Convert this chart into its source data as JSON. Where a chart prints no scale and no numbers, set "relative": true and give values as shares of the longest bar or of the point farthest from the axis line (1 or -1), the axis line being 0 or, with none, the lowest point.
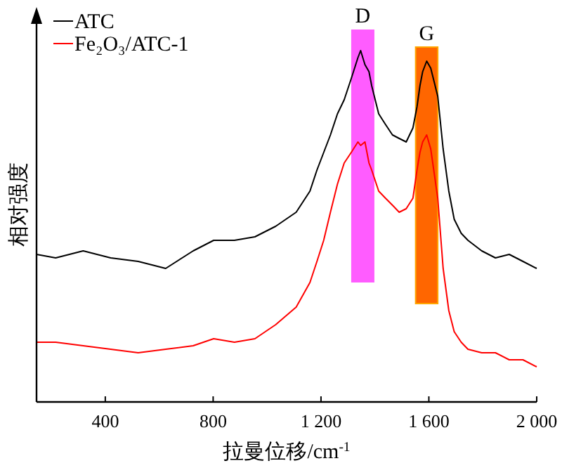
{
  "chart_data": {
    "type": "line",
    "relative": true,
    "xlabel": "拉曼位移/cm$^{-1}$",
    "ylabel": "相对强度",
    "xlim": [
      145,
      2000
    ],
    "xticks": [
      400,
      800,
      {
        "value": 1200,
        "label": "1 200"
      },
      {
        "value": 1600,
        "label": "1 600"
      },
      {
        "value": 2000,
        "label": "2 000"
      }
    ],
    "legend": "top left",
    "grid": false,
    "bands": [
      {
        "axis": "x",
        "from": 1312,
        "to": 1398,
        "label": "D",
        "color": "#ff5cff"
      },
      {
        "axis": "x",
        "from": 1551,
        "to": 1633,
        "label": "G",
        "color": "#ff6600"
      }
    ],
    "series": [
      {
        "name": "ATC",
        "color": "#000000",
        "x": [
          145,
          216,
          318,
          420,
          522,
          624,
          726,
          802,
          879,
          955,
          1032,
          1108,
          1159,
          1185,
          1210,
          1235,
          1261,
          1286,
          1312,
          1337,
          1347,
          1363,
          1378,
          1388,
          1414,
          1439,
          1465,
          1490,
          1516,
          1541,
          1556,
          1567,
          1577,
          1592,
          1607,
          1633,
          1653,
          1674,
          1694,
          1720,
          1745,
          1796,
          1847,
          1898,
          1949,
          2000
        ],
        "values": [
          0.42,
          0.41,
          0.43,
          0.41,
          0.4,
          0.38,
          0.43,
          0.46,
          0.46,
          0.47,
          0.5,
          0.54,
          0.6,
          0.66,
          0.71,
          0.76,
          0.82,
          0.86,
          0.92,
          0.98,
          1.0,
          0.96,
          0.94,
          0.9,
          0.82,
          0.79,
          0.76,
          0.75,
          0.74,
          0.78,
          0.84,
          0.9,
          0.94,
          0.97,
          0.95,
          0.87,
          0.72,
          0.6,
          0.52,
          0.48,
          0.46,
          0.43,
          0.41,
          0.42,
          0.4,
          0.38
        ]
      },
      {
        "name": "Fe₂O₃/ATC-1",
        "color": "#ff0000",
        "x": [
          145,
          216,
          318,
          420,
          522,
          624,
          726,
          802,
          879,
          955,
          1032,
          1108,
          1159,
          1185,
          1210,
          1235,
          1261,
          1286,
          1312,
          1337,
          1347,
          1363,
          1378,
          1388,
          1414,
          1439,
          1465,
          1490,
          1516,
          1541,
          1556,
          1567,
          1577,
          1592,
          1607,
          1633,
          1653,
          1674,
          1694,
          1720,
          1745,
          1796,
          1847,
          1898,
          1949,
          2000
        ],
        "values": [
          0.17,
          0.17,
          0.16,
          0.15,
          0.14,
          0.15,
          0.16,
          0.18,
          0.17,
          0.18,
          0.22,
          0.27,
          0.34,
          0.4,
          0.46,
          0.54,
          0.62,
          0.68,
          0.71,
          0.74,
          0.73,
          0.74,
          0.68,
          0.66,
          0.6,
          0.58,
          0.56,
          0.54,
          0.55,
          0.58,
          0.66,
          0.71,
          0.74,
          0.76,
          0.72,
          0.58,
          0.38,
          0.26,
          0.2,
          0.17,
          0.15,
          0.14,
          0.14,
          0.12,
          0.12,
          0.1
        ]
      }
    ]
  }
}
